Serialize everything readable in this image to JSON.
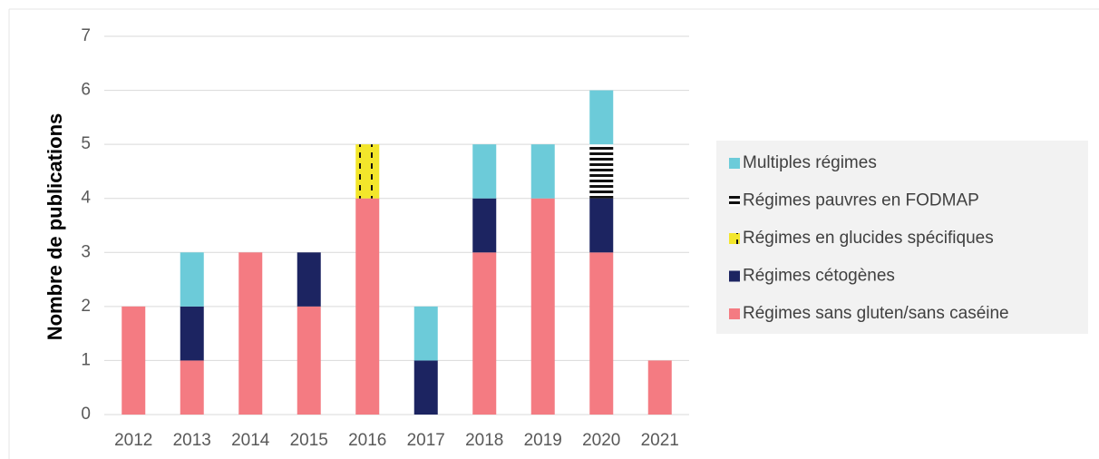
{
  "chart_data": {
    "type": "stacked-bar",
    "y_label": "Nombre de publications",
    "categories": [
      "2012",
      "2013",
      "2014",
      "2015",
      "2016",
      "2017",
      "2018",
      "2019",
      "2020",
      "2021"
    ],
    "series": [
      {
        "name": "Régimes sans gluten/sans caséine",
        "color": "#f47b82",
        "values": [
          2,
          1,
          3,
          2,
          4,
          0,
          3,
          4,
          3,
          1
        ]
      },
      {
        "name": "Régimes cétogènes",
        "color": "#1c2461",
        "values": [
          0,
          1,
          0,
          1,
          0,
          1,
          1,
          0,
          1,
          0
        ]
      },
      {
        "name": "Régimes en glucides spécifiques",
        "color": "#f3e62b",
        "pattern": "vertical-dashes",
        "values": [
          0,
          0,
          0,
          0,
          1,
          0,
          0,
          0,
          0,
          0
        ]
      },
      {
        "name": "Régimes pauvres en FODMAP",
        "color": "#111111",
        "pattern": "horizontal-stripes",
        "values": [
          0,
          0,
          0,
          0,
          0,
          0,
          0,
          0,
          1,
          0
        ]
      },
      {
        "name": "Multiples régimes",
        "color": "#6ccbd9",
        "values": [
          0,
          1,
          0,
          0,
          0,
          1,
          1,
          1,
          1,
          0
        ]
      }
    ],
    "ylim": [
      0,
      7
    ],
    "yticks": [
      0,
      1,
      2,
      3,
      4,
      5,
      6,
      7
    ],
    "grid": true,
    "legend": "right"
  }
}
